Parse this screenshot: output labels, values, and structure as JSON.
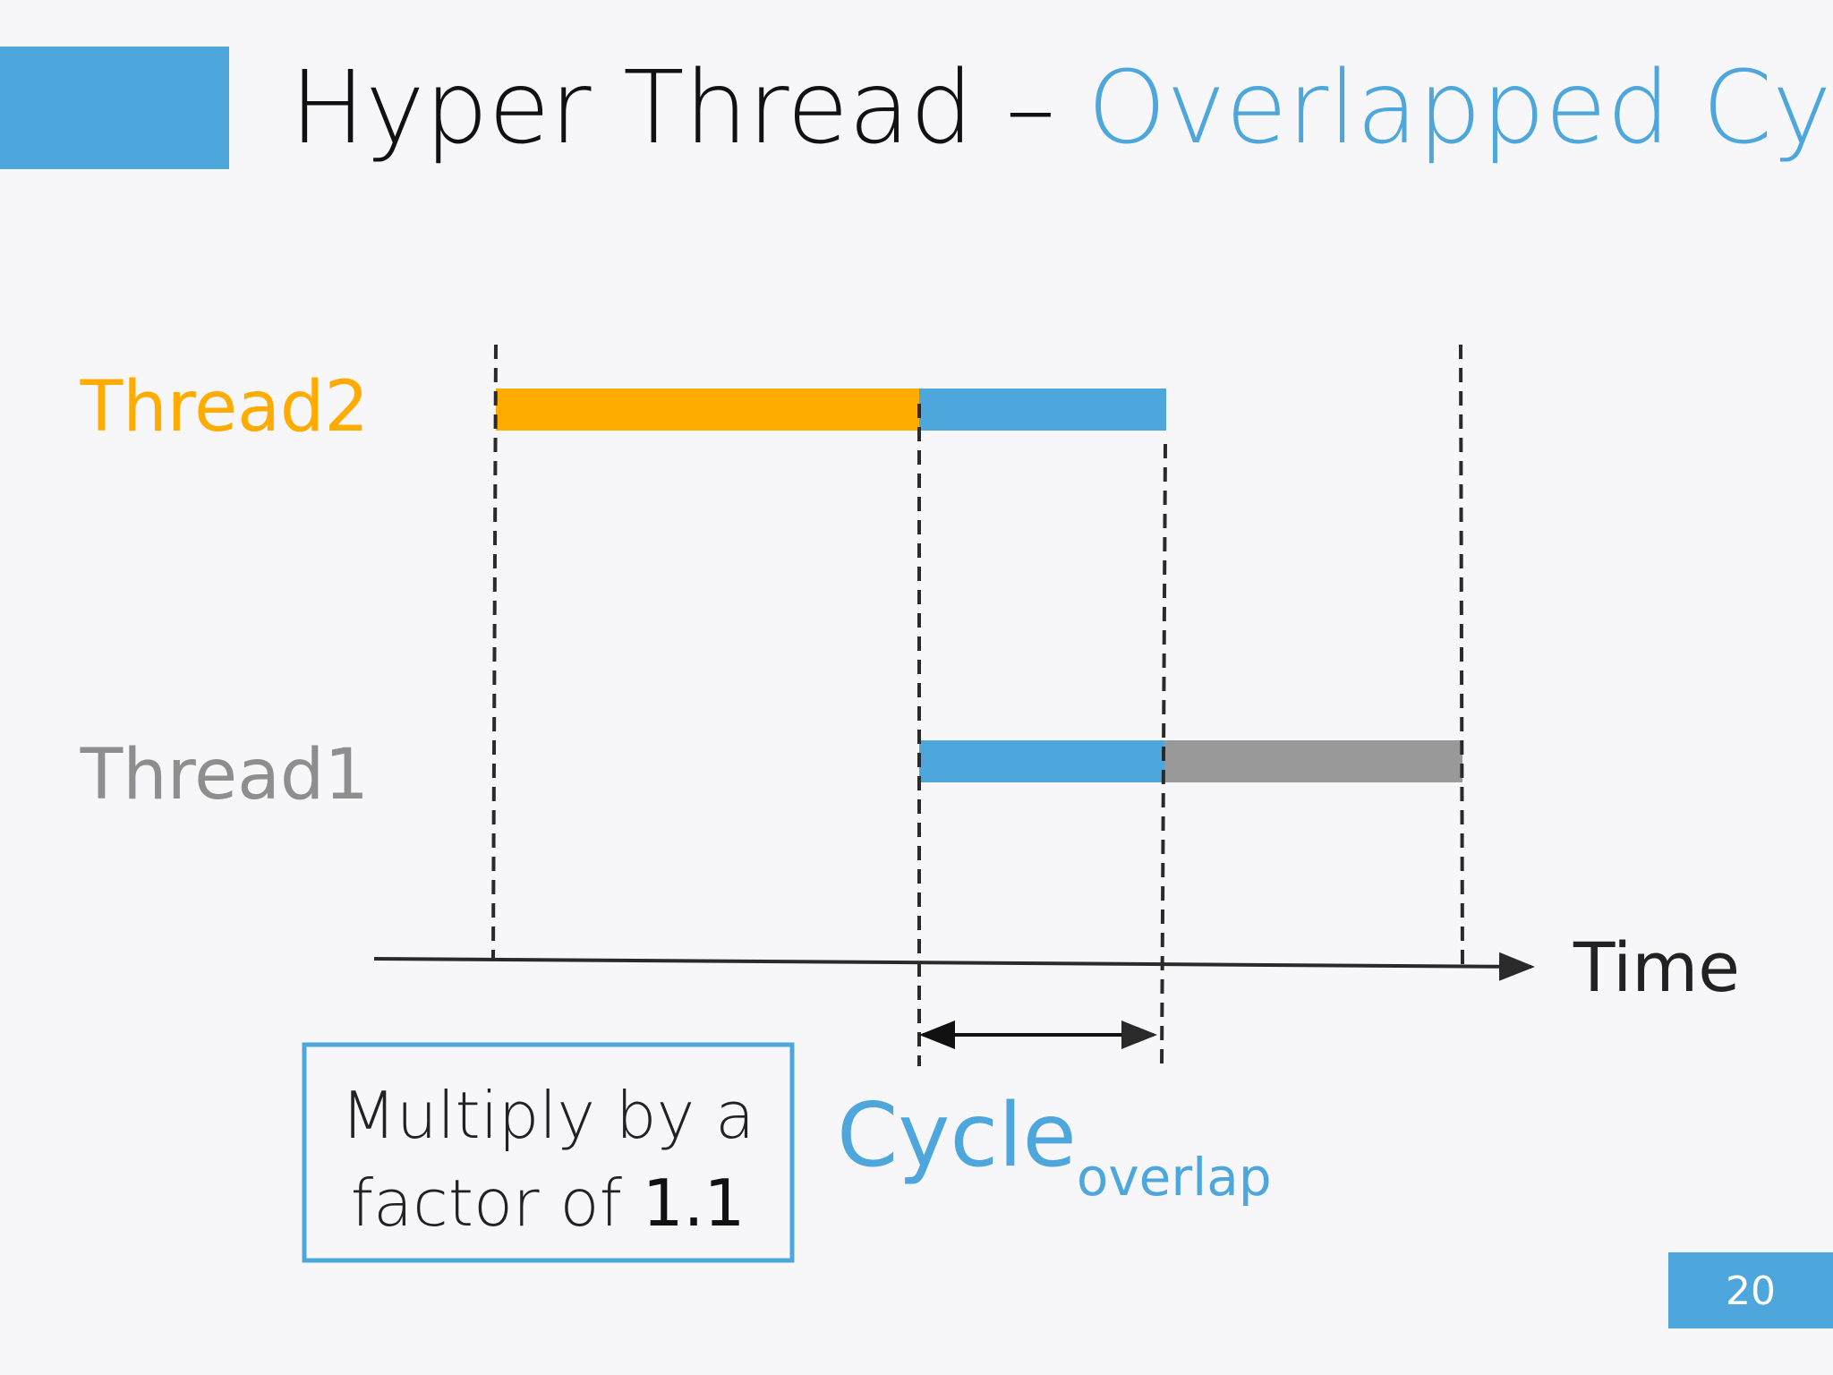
{
  "header": {
    "title": "Hyper Thread – ",
    "title_highlight": "Overlapped Cycles"
  },
  "diagram": {
    "threads": [
      "Thread2",
      "Thread1"
    ],
    "axis_label": "Time",
    "cycle_label": "Cycle",
    "cycle_subscript": "overlap"
  },
  "note": {
    "line1": "Multiply by a",
    "line2": "factor of ",
    "factor": "1.1"
  },
  "footer": {
    "page_number": "20"
  }
}
